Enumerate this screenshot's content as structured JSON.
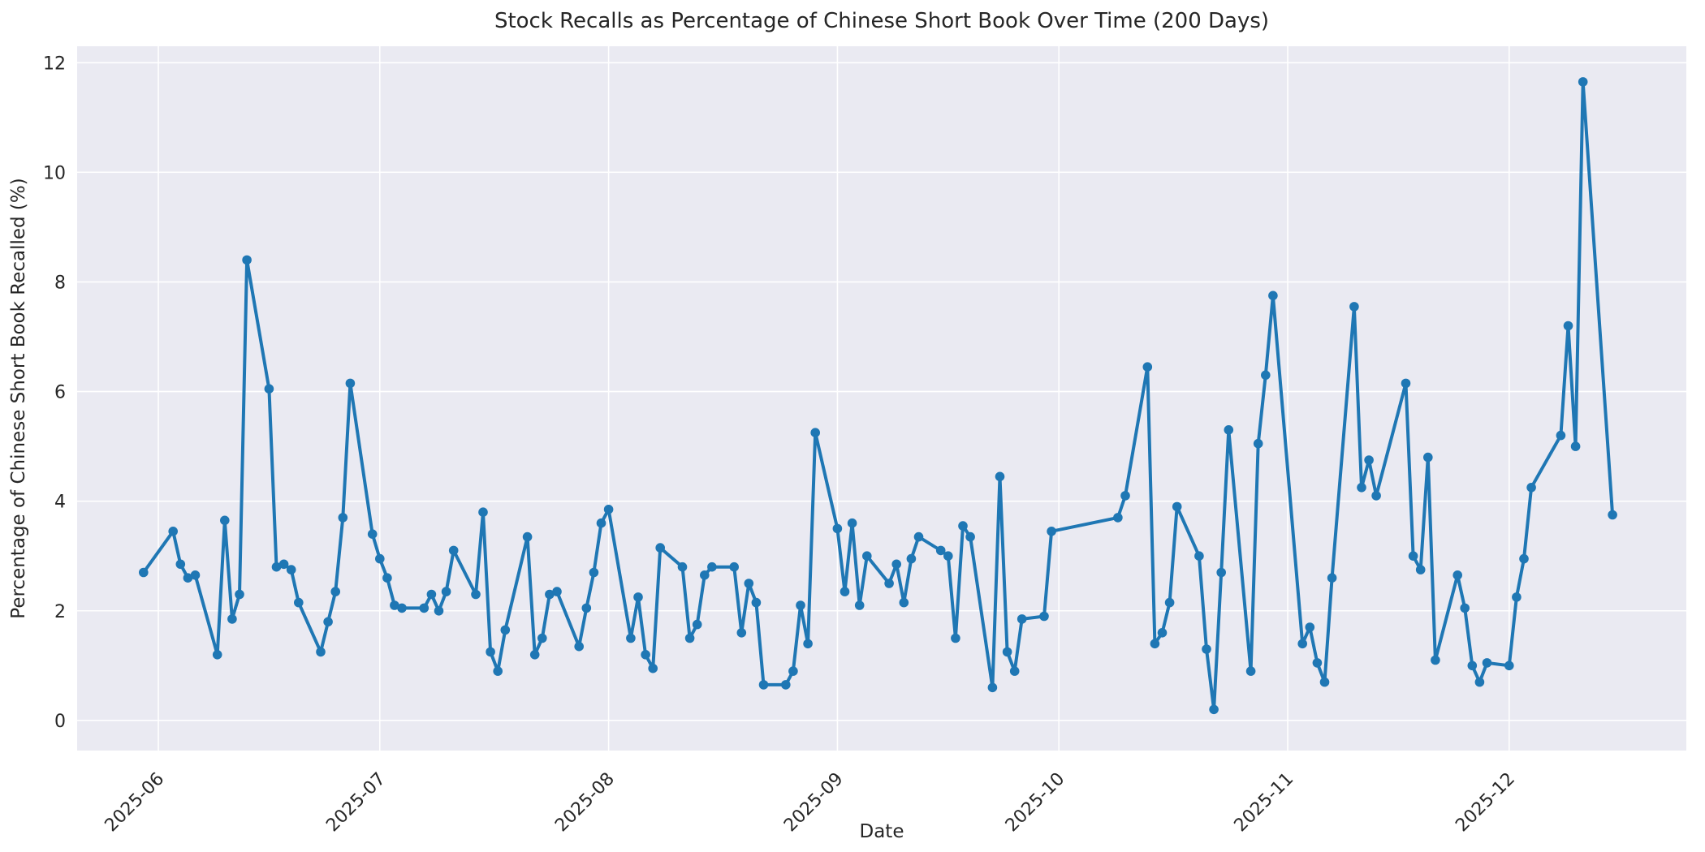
{
  "chart_data": {
    "type": "line",
    "title": "Stock Recalls as Percentage of Chinese Short Book Over Time (200 Days)",
    "xlabel": "Date",
    "ylabel": "Percentage of Chinese Short Book Recalled (%)",
    "legend_position": "none",
    "grid": true,
    "plot_bg_color": "#eaeaf2",
    "grid_color": "#ffffff",
    "line_color": "#1f77b4",
    "marker": "o",
    "ylim": [
      -0.55,
      12.3
    ],
    "yticks": [
      0,
      2,
      4,
      6,
      8,
      10,
      12
    ],
    "xtick_labels": [
      "2025-06",
      "2025-07",
      "2025-08",
      "2025-09",
      "2025-10",
      "2025-11",
      "2025-12"
    ],
    "x": [
      "2025-05-30",
      "2025-06-03",
      "2025-06-04",
      "2025-06-05",
      "2025-06-06",
      "2025-06-09",
      "2025-06-10",
      "2025-06-11",
      "2025-06-12",
      "2025-06-13",
      "2025-06-16",
      "2025-06-17",
      "2025-06-18",
      "2025-06-19",
      "2025-06-20",
      "2025-06-23",
      "2025-06-24",
      "2025-06-25",
      "2025-06-26",
      "2025-06-27",
      "2025-06-30",
      "2025-07-01",
      "2025-07-02",
      "2025-07-03",
      "2025-07-04",
      "2025-07-07",
      "2025-07-08",
      "2025-07-09",
      "2025-07-10",
      "2025-07-11",
      "2025-07-14",
      "2025-07-15",
      "2025-07-16",
      "2025-07-17",
      "2025-07-18",
      "2025-07-21",
      "2025-07-22",
      "2025-07-23",
      "2025-07-24",
      "2025-07-25",
      "2025-07-28",
      "2025-07-29",
      "2025-07-30",
      "2025-07-31",
      "2025-08-01",
      "2025-08-04",
      "2025-08-05",
      "2025-08-06",
      "2025-08-07",
      "2025-08-08",
      "2025-08-11",
      "2025-08-12",
      "2025-08-13",
      "2025-08-14",
      "2025-08-15",
      "2025-08-18",
      "2025-08-19",
      "2025-08-20",
      "2025-08-21",
      "2025-08-22",
      "2025-08-25",
      "2025-08-26",
      "2025-08-27",
      "2025-08-28",
      "2025-08-29",
      "2025-09-01",
      "2025-09-02",
      "2025-09-03",
      "2025-09-04",
      "2025-09-05",
      "2025-09-08",
      "2025-09-09",
      "2025-09-10",
      "2025-09-11",
      "2025-09-12",
      "2025-09-15",
      "2025-09-16",
      "2025-09-17",
      "2025-09-18",
      "2025-09-19",
      "2025-09-22",
      "2025-09-23",
      "2025-09-24",
      "2025-09-25",
      "2025-09-26",
      "2025-09-29",
      "2025-09-30",
      "2025-10-09",
      "2025-10-10",
      "2025-10-13",
      "2025-10-14",
      "2025-10-15",
      "2025-10-16",
      "2025-10-17",
      "2025-10-20",
      "2025-10-21",
      "2025-10-22",
      "2025-10-23",
      "2025-10-24",
      "2025-10-27",
      "2025-10-28",
      "2025-10-29",
      "2025-10-30",
      "2025-11-03",
      "2025-11-04",
      "2025-11-05",
      "2025-11-06",
      "2025-11-07",
      "2025-11-10",
      "2025-11-11",
      "2025-11-12",
      "2025-11-13",
      "2025-11-17",
      "2025-11-18",
      "2025-11-19",
      "2025-11-20",
      "2025-11-21",
      "2025-11-24",
      "2025-11-25",
      "2025-11-26",
      "2025-11-27",
      "2025-11-28",
      "2025-12-01",
      "2025-12-02",
      "2025-12-03",
      "2025-12-04",
      "2025-12-08",
      "2025-12-09",
      "2025-12-10",
      "2025-12-11",
      "2025-12-15"
    ],
    "values": [
      2.7,
      3.45,
      2.85,
      2.6,
      2.65,
      1.2,
      3.65,
      1.85,
      2.3,
      8.4,
      6.05,
      2.8,
      2.85,
      2.75,
      2.15,
      1.25,
      1.8,
      2.35,
      3.7,
      6.15,
      3.4,
      2.95,
      2.6,
      2.1,
      2.05,
      2.05,
      2.3,
      2.0,
      2.35,
      3.1,
      2.3,
      3.8,
      1.25,
      0.9,
      1.65,
      3.35,
      1.2,
      1.5,
      2.3,
      2.35,
      1.35,
      2.05,
      2.7,
      3.6,
      3.85,
      1.5,
      2.25,
      1.2,
      0.95,
      3.15,
      2.8,
      1.5,
      1.75,
      2.65,
      2.8,
      2.8,
      1.6,
      2.5,
      2.15,
      0.65,
      0.65,
      0.9,
      2.1,
      1.4,
      5.25,
      3.5,
      2.35,
      3.6,
      2.1,
      3.0,
      2.5,
      2.85,
      2.15,
      2.95,
      3.35,
      3.1,
      3.0,
      1.5,
      3.55,
      3.35,
      0.6,
      4.45,
      1.25,
      0.9,
      1.85,
      1.9,
      3.45,
      3.7,
      4.1,
      6.45,
      1.4,
      1.6,
      2.15,
      3.9,
      3.0,
      1.3,
      0.2,
      2.7,
      5.3,
      0.9,
      5.05,
      6.3,
      7.75,
      1.4,
      1.7,
      1.05,
      0.7,
      2.6,
      7.55,
      4.25,
      4.75,
      4.1,
      6.15,
      3.0,
      2.75,
      4.8,
      1.1,
      2.65,
      2.05,
      1.0,
      0.7,
      1.05,
      1.0,
      2.25,
      2.95,
      4.25,
      5.2,
      7.2,
      5.0,
      11.65,
      3.75
    ]
  }
}
